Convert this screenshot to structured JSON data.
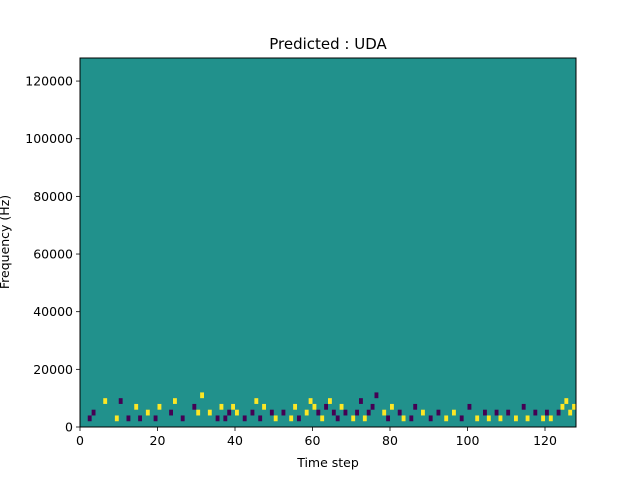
{
  "chart_data": {
    "type": "heatmap",
    "title": "Predicted : UDA",
    "xlabel": "Time step",
    "ylabel": "Frequency (Hz)",
    "xlim": [
      0,
      128
    ],
    "ylim": [
      0,
      128000
    ],
    "x_ticks": [
      0,
      20,
      40,
      60,
      80,
      100,
      120
    ],
    "y_ticks": [
      0,
      20000,
      40000,
      60000,
      80000,
      100000,
      120000
    ],
    "x_tick_labels": [
      "0",
      "20",
      "40",
      "60",
      "80",
      "100",
      "120"
    ],
    "y_tick_labels": [
      "0",
      "20000",
      "40000",
      "60000",
      "80000",
      "100000",
      "120000"
    ],
    "rows": 64,
    "cols": 128,
    "levels": {
      "low": "#440154",
      "mid": "#21918c",
      "high": "#fde725"
    },
    "background_level": "mid",
    "grid": false,
    "cells": [
      [
        2,
        1,
        "low"
      ],
      [
        3,
        2,
        "low"
      ],
      [
        6,
        4,
        "high"
      ],
      [
        9,
        1,
        "high"
      ],
      [
        10,
        4,
        "low"
      ],
      [
        12,
        1,
        "low"
      ],
      [
        14,
        3,
        "high"
      ],
      [
        15,
        1,
        "low"
      ],
      [
        17,
        2,
        "high"
      ],
      [
        19,
        1,
        "low"
      ],
      [
        20,
        3,
        "high"
      ],
      [
        23,
        2,
        "low"
      ],
      [
        24,
        4,
        "high"
      ],
      [
        26,
        1,
        "low"
      ],
      [
        29,
        3,
        "low"
      ],
      [
        30,
        2,
        "high"
      ],
      [
        31,
        5,
        "high"
      ],
      [
        33,
        2,
        "high"
      ],
      [
        35,
        1,
        "low"
      ],
      [
        36,
        3,
        "high"
      ],
      [
        37,
        1,
        "low"
      ],
      [
        38,
        2,
        "low"
      ],
      [
        39,
        3,
        "high"
      ],
      [
        40,
        2,
        "high"
      ],
      [
        42,
        1,
        "low"
      ],
      [
        44,
        2,
        "low"
      ],
      [
        45,
        4,
        "high"
      ],
      [
        46,
        1,
        "low"
      ],
      [
        47,
        3,
        "high"
      ],
      [
        49,
        2,
        "low"
      ],
      [
        50,
        1,
        "high"
      ],
      [
        52,
        2,
        "low"
      ],
      [
        54,
        1,
        "high"
      ],
      [
        55,
        3,
        "high"
      ],
      [
        56,
        1,
        "low"
      ],
      [
        58,
        2,
        "high"
      ],
      [
        59,
        4,
        "high"
      ],
      [
        60,
        3,
        "high"
      ],
      [
        61,
        2,
        "low"
      ],
      [
        62,
        1,
        "high"
      ],
      [
        63,
        3,
        "low"
      ],
      [
        64,
        4,
        "high"
      ],
      [
        65,
        2,
        "low"
      ],
      [
        66,
        1,
        "low"
      ],
      [
        67,
        3,
        "high"
      ],
      [
        68,
        2,
        "low"
      ],
      [
        70,
        1,
        "high"
      ],
      [
        71,
        2,
        "low"
      ],
      [
        72,
        4,
        "low"
      ],
      [
        73,
        1,
        "high"
      ],
      [
        74,
        2,
        "low"
      ],
      [
        75,
        3,
        "low"
      ],
      [
        76,
        5,
        "low"
      ],
      [
        78,
        2,
        "high"
      ],
      [
        79,
        1,
        "low"
      ],
      [
        80,
        3,
        "high"
      ],
      [
        82,
        2,
        "low"
      ],
      [
        83,
        1,
        "high"
      ],
      [
        85,
        1,
        "low"
      ],
      [
        86,
        3,
        "low"
      ],
      [
        88,
        2,
        "high"
      ],
      [
        90,
        1,
        "low"
      ],
      [
        92,
        2,
        "low"
      ],
      [
        94,
        1,
        "high"
      ],
      [
        96,
        2,
        "high"
      ],
      [
        98,
        1,
        "low"
      ],
      [
        100,
        3,
        "low"
      ],
      [
        102,
        1,
        "high"
      ],
      [
        104,
        2,
        "low"
      ],
      [
        105,
        1,
        "high"
      ],
      [
        107,
        2,
        "low"
      ],
      [
        108,
        1,
        "high"
      ],
      [
        110,
        2,
        "low"
      ],
      [
        112,
        1,
        "high"
      ],
      [
        114,
        3,
        "low"
      ],
      [
        115,
        1,
        "high"
      ],
      [
        117,
        2,
        "low"
      ],
      [
        119,
        1,
        "high"
      ],
      [
        120,
        2,
        "low"
      ],
      [
        121,
        1,
        "high"
      ],
      [
        123,
        2,
        "low"
      ],
      [
        124,
        3,
        "high"
      ],
      [
        125,
        4,
        "high"
      ],
      [
        126,
        2,
        "high"
      ],
      [
        127,
        3,
        "high"
      ]
    ]
  }
}
